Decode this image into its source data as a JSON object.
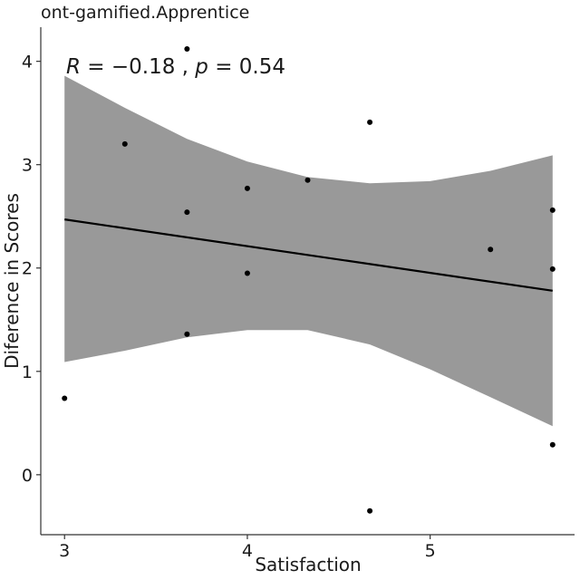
{
  "chart_data": {
    "type": "scatter",
    "title": "ont-gamified.Apprentice",
    "xlabel": "Satisfaction",
    "ylabel": "Diference in Scores",
    "xlim": [
      2.87,
      5.79
    ],
    "ylim": [
      -0.58,
      4.33
    ],
    "x_ticks": [
      3,
      4,
      5
    ],
    "y_ticks": [
      0,
      1,
      2,
      3,
      4
    ],
    "grid": false,
    "annotation": {
      "r_symbol": "R",
      "r_text": " = −0.18 , ",
      "p_symbol": "p",
      "p_text": " = 0.54"
    },
    "points": [
      {
        "x": 3.0,
        "y": 0.74
      },
      {
        "x": 3.33,
        "y": 3.2
      },
      {
        "x": 3.67,
        "y": 4.12
      },
      {
        "x": 3.67,
        "y": 2.54
      },
      {
        "x": 3.67,
        "y": 1.36
      },
      {
        "x": 4.0,
        "y": 2.77
      },
      {
        "x": 4.0,
        "y": 1.95
      },
      {
        "x": 4.33,
        "y": 2.85
      },
      {
        "x": 4.67,
        "y": 3.41
      },
      {
        "x": 4.67,
        "y": -0.35
      },
      {
        "x": 5.33,
        "y": 2.18
      },
      {
        "x": 5.67,
        "y": 2.56
      },
      {
        "x": 5.67,
        "y": 1.99
      },
      {
        "x": 5.67,
        "y": 0.29
      }
    ],
    "regression_line": {
      "x": [
        3.0,
        5.67
      ],
      "y": [
        2.47,
        1.78
      ]
    },
    "confidence_band": {
      "x": [
        3.0,
        3.33,
        3.67,
        4.0,
        4.33,
        4.67,
        5.0,
        5.33,
        5.67
      ],
      "upper": [
        3.86,
        3.55,
        3.25,
        3.03,
        2.88,
        2.82,
        2.84,
        2.94,
        3.09
      ],
      "lower": [
        1.09,
        1.2,
        1.33,
        1.4,
        1.4,
        1.26,
        1.02,
        0.75,
        0.47
      ]
    },
    "colors": {
      "band": "#999999",
      "line": "#000000",
      "points": "#000000",
      "axis": "#333333"
    }
  }
}
